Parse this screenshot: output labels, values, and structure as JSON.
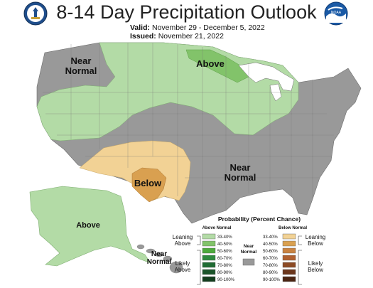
{
  "header": {
    "title": "8-14 Day Precipitation Outlook",
    "valid_label": "Valid:",
    "valid_value": "November 29 - December 5, 2022",
    "issued_label": "Issued:",
    "issued_value": "November 21, 2022",
    "left_logo_icon": "department-of-commerce-seal-icon",
    "right_logo_icon": "noaa-logo-icon",
    "right_logo_text": "NOAA"
  },
  "map": {
    "labels": {
      "near_normal_west_1": "Near",
      "near_normal_west_2": "Normal",
      "above_north": "Above",
      "near_normal_south_1": "Near",
      "near_normal_south_2": "Normal",
      "below_southwest": "Below",
      "above_alaska": "Above",
      "near_normal_hawaii_1": "Near",
      "near_normal_hawaii_2": "Normal"
    },
    "colors": {
      "near_normal": "#999999",
      "above_33_40": "#b3dba6",
      "above_40_50": "#82c36a",
      "below_33_40": "#f2d295",
      "below_40_50": "#d9a050",
      "water": "#ffffff"
    }
  },
  "legend": {
    "title": "Probability (Percent Chance)",
    "above_header": "Above Normal",
    "below_header": "Below Normal",
    "near_header_1": "Near",
    "near_header_2": "Normal",
    "leaning_above_1": "Leaning",
    "leaning_above_2": "Above",
    "likely_above_1": "Likely",
    "likely_above_2": "Above",
    "leaning_below_1": "Leaning",
    "leaning_below_2": "Below",
    "likely_below_1": "Likely",
    "likely_below_2": "Below",
    "above_bins": [
      {
        "label": "33-40%",
        "color": "#b3dba6"
      },
      {
        "label": "40-50%",
        "color": "#82c36a"
      },
      {
        "label": "50-60%",
        "color": "#4daa3c"
      },
      {
        "label": "60-70%",
        "color": "#2e8a3e"
      },
      {
        "label": "70-80%",
        "color": "#1f6b33"
      },
      {
        "label": "80-90%",
        "color": "#1a5429"
      },
      {
        "label": "90-100%",
        "color": "#133d1d"
      }
    ],
    "below_bins": [
      {
        "label": "33-40%",
        "color": "#f2d295"
      },
      {
        "label": "40-50%",
        "color": "#d9a050"
      },
      {
        "label": "50-60%",
        "color": "#c98240"
      },
      {
        "label": "60-70%",
        "color": "#b0602f"
      },
      {
        "label": "70-80%",
        "color": "#8c4a24"
      },
      {
        "label": "80-90%",
        "color": "#6b351b"
      },
      {
        "label": "90-100%",
        "color": "#4a2412"
      }
    ],
    "near_color": "#999999"
  }
}
